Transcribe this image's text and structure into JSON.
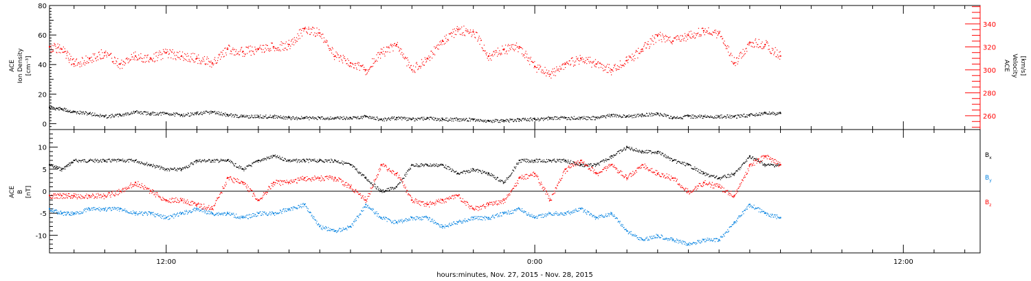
{
  "figure": {
    "x_title": "hours:minutes, Nov. 27, 2015 - Nov. 28, 2015"
  },
  "chart_data": [
    {
      "type": "scatter",
      "panel": "ion-density-and-velocity",
      "title": "",
      "ylabel_left": [
        "ACE",
        "Ion Density",
        "[cm⁻³]"
      ],
      "ylabel_right": [
        "ACE",
        "Velocity",
        "[km/s]"
      ],
      "x_tick_labels": [
        "12:00",
        "0:00",
        "12:00"
      ],
      "x_unit": "hours since Nov. 27, 2015 00:00",
      "xlim": [
        8.2,
        38.5
      ],
      "x_major_ticks": [
        12,
        24,
        36
      ],
      "ylim_left": [
        -4,
        80
      ],
      "yticks_left": [
        0,
        20,
        40,
        60,
        80
      ],
      "ylim_right": [
        248,
        356
      ],
      "yticks_right": [
        260,
        280,
        300,
        320,
        340
      ],
      "grid": false,
      "series": [
        {
          "name": "",
          "color": "#000000",
          "axis": "left",
          "x": [
            8.2,
            8.6,
            9.0,
            9.5,
            10.0,
            10.5,
            11.0,
            11.5,
            12.0,
            12.5,
            13.0,
            13.5,
            14.0,
            14.5,
            15.0,
            15.5,
            16.0,
            16.5,
            17.0,
            17.5,
            18.0,
            18.5,
            19.0,
            19.5,
            20.0,
            20.5,
            21.0,
            21.5,
            22.0,
            22.5,
            23.0,
            23.5,
            24.0,
            24.5,
            25.0,
            25.5,
            26.0,
            26.5,
            27.0,
            27.5,
            28.0,
            28.5,
            29.0,
            29.5,
            30.0,
            30.5,
            31.0,
            31.5,
            32.0
          ],
          "y": [
            11,
            10,
            8,
            7,
            5,
            6,
            8,
            7,
            7,
            6,
            7,
            8,
            6,
            5,
            5,
            5,
            4,
            4,
            4,
            4,
            4,
            5,
            3,
            4,
            3,
            4,
            3,
            3,
            3,
            2,
            2,
            3,
            3,
            4,
            4,
            4,
            4,
            6,
            5,
            6,
            7,
            4,
            5,
            5,
            5,
            5,
            6,
            7,
            7
          ]
        },
        {
          "name": "",
          "color": "#ff0000",
          "axis": "right",
          "x": [
            8.2,
            8.6,
            9.0,
            9.5,
            10.0,
            10.5,
            11.0,
            11.5,
            12.0,
            12.5,
            13.0,
            13.5,
            14.0,
            14.5,
            15.0,
            15.5,
            16.0,
            16.5,
            17.0,
            17.5,
            18.0,
            18.5,
            19.0,
            19.5,
            20.0,
            20.5,
            21.0,
            21.5,
            22.0,
            22.5,
            23.0,
            23.5,
            24.0,
            24.5,
            25.0,
            25.5,
            26.0,
            26.5,
            27.0,
            27.5,
            28.0,
            28.5,
            29.0,
            29.5,
            30.0,
            30.5,
            31.0,
            31.5,
            32.0
          ],
          "y": [
            320,
            318,
            305,
            310,
            315,
            305,
            312,
            310,
            315,
            312,
            310,
            306,
            318,
            316,
            318,
            320,
            322,
            336,
            332,
            312,
            306,
            300,
            315,
            322,
            300,
            310,
            325,
            335,
            333,
            312,
            318,
            320,
            303,
            296,
            305,
            310,
            305,
            300,
            308,
            318,
            330,
            325,
            330,
            334,
            332,
            306,
            324,
            322,
            312
          ]
        }
      ]
    },
    {
      "type": "scatter",
      "panel": "magnetic-field",
      "title": "",
      "ylabel_left": [
        "ACE",
        "B",
        "[nT]"
      ],
      "x_tick_labels": [
        "12:00",
        "0:00",
        "12:00"
      ],
      "x_unit": "hours since Nov. 27, 2015 00:00",
      "xlim": [
        8.2,
        38.5
      ],
      "x_major_ticks": [
        12,
        24,
        36
      ],
      "ylim": [
        -14,
        14
      ],
      "yticks": [
        -10,
        -5,
        0,
        5,
        10
      ],
      "zero_line": true,
      "grid": false,
      "legend": {
        "placement": "right",
        "labels": [
          "B",
          "B",
          "B"
        ],
        "subscripts": [
          "x",
          "y",
          "z"
        ]
      },
      "series": [
        {
          "name": "Bx",
          "color": "#000000",
          "x": [
            8.2,
            8.6,
            9.0,
            9.5,
            10.0,
            10.5,
            11.0,
            11.5,
            12.0,
            12.5,
            13.0,
            13.5,
            14.0,
            14.5,
            15.0,
            15.5,
            16.0,
            16.5,
            17.0,
            17.5,
            18.0,
            18.5,
            19.0,
            19.5,
            20.0,
            20.5,
            21.0,
            21.5,
            22.0,
            22.5,
            23.0,
            23.5,
            24.0,
            24.5,
            25.0,
            25.5,
            26.0,
            26.5,
            27.0,
            27.5,
            28.0,
            28.5,
            29.0,
            29.5,
            30.0,
            30.5,
            31.0,
            31.5,
            32.0
          ],
          "y": [
            6,
            5,
            7,
            7,
            7,
            7,
            7,
            6,
            5,
            5,
            7,
            7,
            7,
            5,
            7,
            8,
            7,
            7,
            7,
            7,
            6,
            3,
            0,
            1,
            6,
            6,
            6,
            4,
            5,
            4,
            2,
            7,
            7,
            7,
            7,
            6,
            6,
            8,
            10,
            9,
            9,
            7,
            6,
            4,
            3,
            4,
            8,
            6,
            6
          ]
        },
        {
          "name": "By",
          "color": "#0080e0",
          "x": [
            8.2,
            8.6,
            9.0,
            9.5,
            10.0,
            10.5,
            11.0,
            11.5,
            12.0,
            12.5,
            13.0,
            13.5,
            14.0,
            14.5,
            15.0,
            15.5,
            16.0,
            16.5,
            17.0,
            17.5,
            18.0,
            18.5,
            19.0,
            19.5,
            20.0,
            20.5,
            21.0,
            21.5,
            22.0,
            22.5,
            23.0,
            23.5,
            24.0,
            24.5,
            25.0,
            25.5,
            26.0,
            26.5,
            27.0,
            27.5,
            28.0,
            28.5,
            29.0,
            29.5,
            30.0,
            30.5,
            31.0,
            31.5,
            32.0
          ],
          "y": [
            -4,
            -5,
            -5,
            -4,
            -4,
            -4,
            -5,
            -5,
            -6,
            -5,
            -4,
            -5,
            -5,
            -6,
            -5,
            -5,
            -4,
            -3,
            -8,
            -9,
            -8,
            -3,
            -6,
            -7,
            -6,
            -6,
            -8,
            -7,
            -6,
            -6,
            -5,
            -4,
            -6,
            -5,
            -5,
            -4,
            -6,
            -5,
            -9,
            -11,
            -10,
            -11,
            -12,
            -11,
            -11,
            -7,
            -3,
            -5,
            -6
          ]
        },
        {
          "name": "Bz",
          "color": "#ff0000",
          "x": [
            8.2,
            8.6,
            9.0,
            9.5,
            10.0,
            10.5,
            11.0,
            11.5,
            12.0,
            12.5,
            13.0,
            13.5,
            14.0,
            14.5,
            15.0,
            15.5,
            16.0,
            16.5,
            17.0,
            17.5,
            18.0,
            18.5,
            19.0,
            19.5,
            20.0,
            20.5,
            21.0,
            21.5,
            22.0,
            22.5,
            23.0,
            23.5,
            24.0,
            24.5,
            25.0,
            25.5,
            26.0,
            26.5,
            27.0,
            27.5,
            28.0,
            28.5,
            29.0,
            29.5,
            30.0,
            30.5,
            31.0,
            31.5,
            32.0
          ],
          "y": [
            -1,
            -1,
            -1,
            -1,
            -1,
            0,
            2,
            0,
            -2,
            -2,
            -3,
            -4,
            3,
            2,
            -2,
            2,
            2,
            3,
            3,
            3,
            1,
            -2,
            6,
            4,
            -2,
            -3,
            -2,
            -1,
            -4,
            -3,
            -2,
            3,
            4,
            -2,
            5,
            7,
            4,
            6,
            3,
            6,
            4,
            3,
            0,
            2,
            1,
            -1,
            6,
            8,
            6
          ]
        }
      ]
    }
  ]
}
